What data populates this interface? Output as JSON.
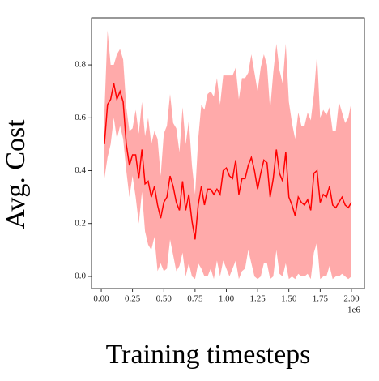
{
  "chart_data": {
    "type": "band-line",
    "xlabel": "Training timesteps",
    "ylabel": "Avg. Cost",
    "x_offset_text": "1e6",
    "color": "#ff0000",
    "band_color": "#ffaaaa",
    "xlim": [
      -0.078,
      2.104
    ],
    "ylim": [
      -0.046,
      0.978
    ],
    "xticks": [
      {
        "value": 0,
        "label": "0.00"
      },
      {
        "value": 0.25,
        "label": "0.25"
      },
      {
        "value": 0.5,
        "label": "0.50"
      },
      {
        "value": 0.75,
        "label": "0.75"
      },
      {
        "value": 1,
        "label": "1.00"
      },
      {
        "value": 1.25,
        "label": "1.25"
      },
      {
        "value": 1.5,
        "label": "1.50"
      },
      {
        "value": 1.75,
        "label": "1.75"
      },
      {
        "value": 2,
        "label": "2.00"
      }
    ],
    "yticks": [
      {
        "value": 0,
        "label": "0.0"
      },
      0.2,
      0.4,
      0.6,
      0.8
    ],
    "x": [
      0.025,
      0.05,
      0.075,
      0.1,
      0.125,
      0.15,
      0.175,
      0.2,
      0.225,
      0.25,
      0.275,
      0.3,
      0.325,
      0.35,
      0.375,
      0.4,
      0.425,
      0.45,
      0.475,
      0.5,
      0.525,
      0.55,
      0.575,
      0.6,
      0.625,
      0.65,
      0.675,
      0.7,
      0.725,
      0.75,
      0.775,
      0.8,
      0.825,
      0.85,
      0.875,
      0.9,
      0.925,
      0.95,
      0.975,
      1.0,
      1.025,
      1.05,
      1.075,
      1.1,
      1.125,
      1.15,
      1.175,
      1.2,
      1.225,
      1.25,
      1.275,
      1.3,
      1.325,
      1.35,
      1.375,
      1.4,
      1.425,
      1.45,
      1.475,
      1.5,
      1.525,
      1.55,
      1.575,
      1.6,
      1.625,
      1.65,
      1.675,
      1.7,
      1.725,
      1.75,
      1.775,
      1.8,
      1.825,
      1.85,
      1.875,
      1.9,
      1.925,
      1.95,
      1.975,
      2.0
    ],
    "values": [
      0.5,
      0.65,
      0.67,
      0.73,
      0.67,
      0.7,
      0.66,
      0.5,
      0.42,
      0.46,
      0.46,
      0.37,
      0.48,
      0.35,
      0.36,
      0.3,
      0.34,
      0.27,
      0.22,
      0.28,
      0.3,
      0.38,
      0.34,
      0.28,
      0.25,
      0.36,
      0.25,
      0.31,
      0.21,
      0.14,
      0.27,
      0.34,
      0.27,
      0.33,
      0.33,
      0.31,
      0.33,
      0.31,
      0.4,
      0.41,
      0.38,
      0.37,
      0.44,
      0.31,
      0.37,
      0.37,
      0.42,
      0.45,
      0.4,
      0.33,
      0.39,
      0.44,
      0.43,
      0.3,
      0.37,
      0.48,
      0.39,
      0.36,
      0.47,
      0.3,
      0.27,
      0.23,
      0.3,
      0.28,
      0.27,
      0.29,
      0.25,
      0.39,
      0.4,
      0.28,
      0.31,
      0.3,
      0.34,
      0.27,
      0.26,
      0.28,
      0.3,
      0.27,
      0.26,
      0.28
    ],
    "lower": [
      0.37,
      0.45,
      0.5,
      0.6,
      0.52,
      0.57,
      0.52,
      0.4,
      0.3,
      0.38,
      0.3,
      0.2,
      0.32,
      0.17,
      0.12,
      0.1,
      0.15,
      0.02,
      0.05,
      0.02,
      0.03,
      0.14,
      0.08,
      0.02,
      0.04,
      0.09,
      0.0,
      0.05,
      0.0,
      -0.01,
      0.05,
      0.03,
      0.0,
      0.0,
      0.03,
      -0.01,
      0.06,
      0.0,
      0.06,
      0.03,
      0.0,
      0.03,
      0.06,
      -0.01,
      0.02,
      0.03,
      0.1,
      0.05,
      0.0,
      -0.01,
      0.0,
      0.05,
      0.05,
      -0.01,
      0.0,
      0.1,
      0.01,
      0.0,
      0.05,
      -0.01,
      0.0,
      -0.01,
      0.01,
      0.0,
      0.0,
      0.01,
      -0.01,
      0.09,
      0.13,
      -0.01,
      0.0,
      0.0,
      0.04,
      -0.01,
      0.0,
      0.0,
      0.01,
      0.0,
      -0.01,
      0.0
    ],
    "upper": [
      0.62,
      0.93,
      0.8,
      0.8,
      0.84,
      0.86,
      0.82,
      0.64,
      0.55,
      0.56,
      0.63,
      0.54,
      0.66,
      0.53,
      0.6,
      0.5,
      0.55,
      0.52,
      0.38,
      0.54,
      0.57,
      0.69,
      0.58,
      0.56,
      0.47,
      0.64,
      0.5,
      0.59,
      0.42,
      0.31,
      0.52,
      0.65,
      0.63,
      0.69,
      0.7,
      0.68,
      0.75,
      0.65,
      0.76,
      0.76,
      0.76,
      0.76,
      0.79,
      0.67,
      0.75,
      0.75,
      0.77,
      0.84,
      0.77,
      0.7,
      0.79,
      0.84,
      0.8,
      0.63,
      0.77,
      0.88,
      0.78,
      0.73,
      0.88,
      0.66,
      0.58,
      0.52,
      0.62,
      0.57,
      0.57,
      0.62,
      0.59,
      0.69,
      0.84,
      0.6,
      0.63,
      0.61,
      0.64,
      0.55,
      0.55,
      0.66,
      0.62,
      0.58,
      0.6,
      0.66
    ]
  }
}
